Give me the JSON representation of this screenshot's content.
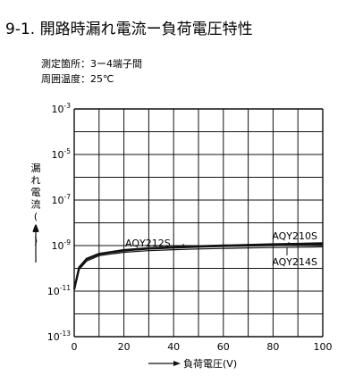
{
  "title": "9-1. 開路時漏れ電流ー負荷電圧特性",
  "conditions": [
    "測定箇所：3ー4端子間",
    "周囲温度：25℃"
  ],
  "chart_data": {
    "type": "line",
    "xlabel": "負荷電圧(V)",
    "ylabel": "漏れ電流(A)",
    "xlim": [
      0,
      100
    ],
    "ylim": [
      1e-13,
      0.001
    ],
    "y_scale": "log",
    "grid": true,
    "x_ticks": [
      "0",
      "20",
      "40",
      "60",
      "80",
      "100"
    ],
    "y_ticks": [
      {
        "base": "10",
        "exp": "-3"
      },
      {
        "base": "10",
        "exp": "-5"
      },
      {
        "base": "10",
        "exp": "-7"
      },
      {
        "base": "10",
        "exp": "-9"
      },
      {
        "base": "10",
        "exp": "-11"
      },
      {
        "base": "10",
        "exp": "-13"
      }
    ],
    "series": [
      {
        "name": "AQY212S",
        "x": [
          0,
          2,
          5,
          10,
          20,
          30,
          40,
          50,
          60,
          70,
          80,
          90,
          100
        ],
        "y": [
          1.2e-11,
          1e-10,
          2.4e-10,
          4e-10,
          5.8e-10,
          7e-10,
          7.8e-10,
          8.5e-10,
          9.1e-10,
          9.6e-10,
          1e-09,
          1.05e-09,
          1.1e-09
        ]
      },
      {
        "name": "AQY210S",
        "x": [
          0,
          2,
          5,
          10,
          20,
          30,
          40,
          50,
          60,
          70,
          80,
          90,
          100
        ],
        "y": [
          1.2e-11,
          1.1e-10,
          2.6e-10,
          4.3e-10,
          6.3e-10,
          7.6e-10,
          8.5e-10,
          9.3e-10,
          1e-09,
          1.07e-09,
          1.13e-09,
          1.19e-09,
          1.25e-09
        ]
      },
      {
        "name": "AQY214S",
        "x": [
          0,
          2,
          5,
          10,
          20,
          30,
          40,
          50,
          60,
          70,
          80,
          90,
          100
        ],
        "y": [
          1.2e-11,
          9e-11,
          2.1e-10,
          3.6e-10,
          5.1e-10,
          6e-10,
          6.6e-10,
          7.1e-10,
          7.5e-10,
          7.9e-10,
          8.2e-10,
          8.5e-10,
          8.8e-10
        ]
      }
    ]
  }
}
